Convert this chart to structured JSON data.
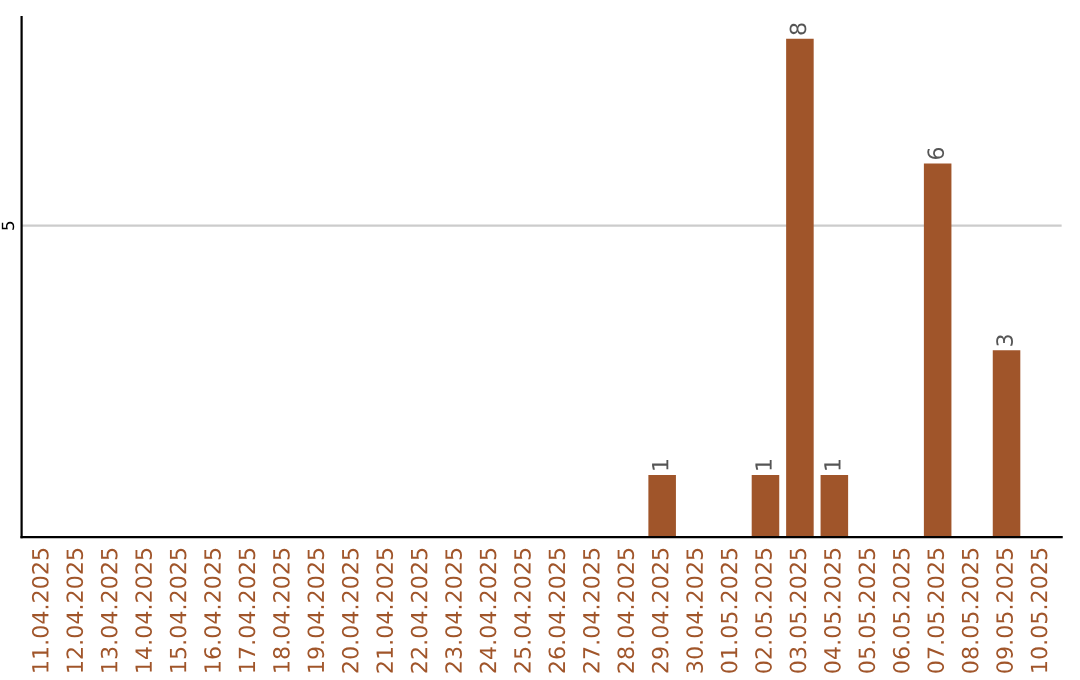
{
  "chart_data": {
    "type": "bar",
    "categories": [
      "11.04.2025",
      "12.04.2025",
      "13.04.2025",
      "14.04.2025",
      "15.04.2025",
      "16.04.2025",
      "17.04.2025",
      "18.04.2025",
      "19.04.2025",
      "20.04.2025",
      "21.04.2025",
      "22.04.2025",
      "23.04.2025",
      "24.04.2025",
      "25.04.2025",
      "26.04.2025",
      "27.04.2025",
      "28.04.2025",
      "29.04.2025",
      "30.04.2025",
      "01.05.2025",
      "02.05.2025",
      "03.05.2025",
      "04.05.2025",
      "05.05.2025",
      "06.05.2025",
      "07.05.2025",
      "08.05.2025",
      "09.05.2025",
      "10.05.2025"
    ],
    "values": [
      null,
      null,
      null,
      null,
      null,
      null,
      null,
      null,
      null,
      null,
      null,
      null,
      null,
      null,
      null,
      null,
      null,
      null,
      1,
      null,
      null,
      1,
      8,
      1,
      null,
      null,
      6,
      null,
      3,
      null
    ],
    "data_labels": true,
    "color": "#a0552a",
    "ylim": [
      0,
      8.35
    ],
    "yticks": [
      5
    ],
    "grid": "y",
    "legend": false
  }
}
